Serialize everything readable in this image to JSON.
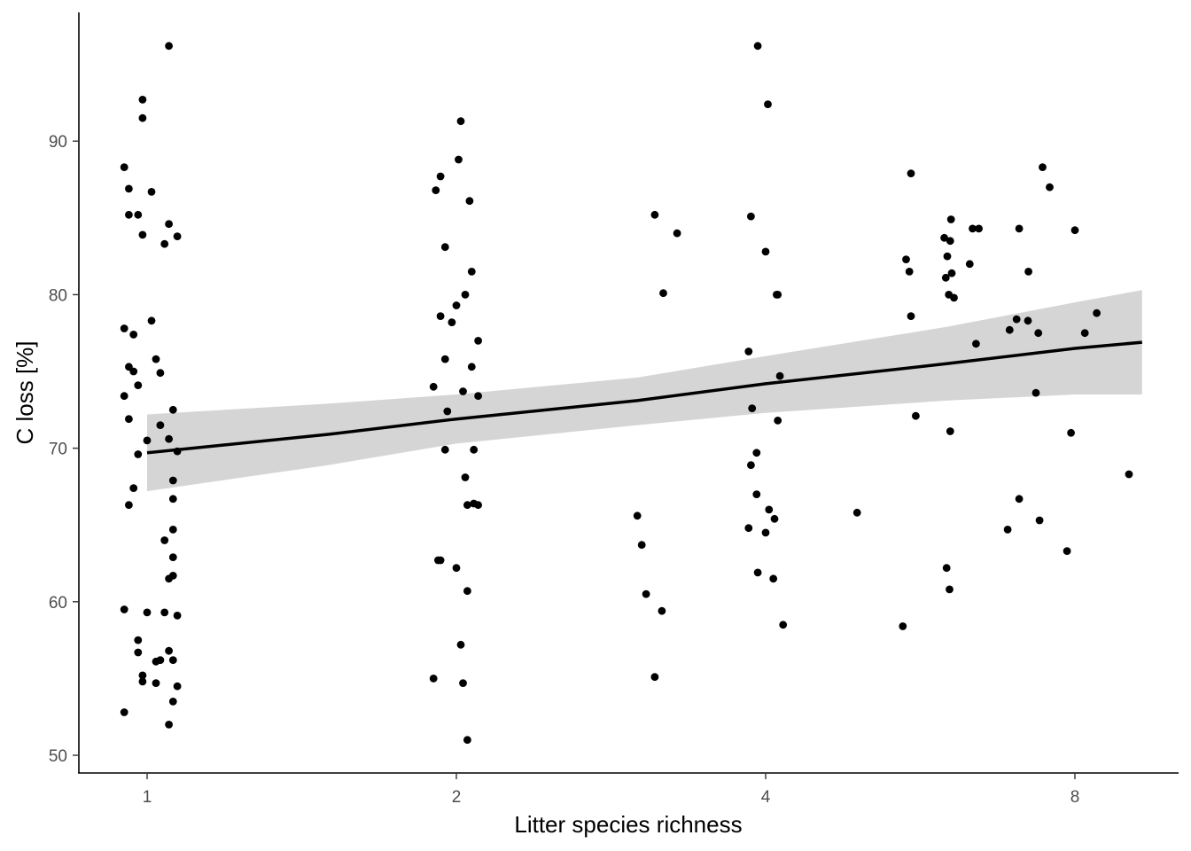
{
  "chart_data": {
    "type": "scatter",
    "title": "",
    "xlabel": "Litter species richness",
    "ylabel": "C loss [%]",
    "x_scale": "log2",
    "xticks": [
      1,
      2,
      4,
      8
    ],
    "xtick_labels": [
      "1",
      "2",
      "4",
      "8"
    ],
    "yticks": [
      50,
      60,
      70,
      80,
      90
    ],
    "ytick_labels": [
      "50",
      "60",
      "70",
      "80",
      "90"
    ],
    "xlim": [
      0.859,
      9.73
    ],
    "ylim": [
      49,
      96.6
    ],
    "grid": false,
    "legend": "none",
    "colors": {
      "points": "#000000",
      "fit_line": "#000000",
      "ribbon": "#d3d3d3",
      "axis": "#000000",
      "tick_text": "#4d4d4d"
    },
    "points": [
      {
        "x": 1.05,
        "y": 96.2
      },
      {
        "x": 0.99,
        "y": 92.7
      },
      {
        "x": 0.99,
        "y": 91.5
      },
      {
        "x": 0.95,
        "y": 88.3
      },
      {
        "x": 0.96,
        "y": 86.9
      },
      {
        "x": 1.01,
        "y": 86.7
      },
      {
        "x": 0.96,
        "y": 85.2
      },
      {
        "x": 0.98,
        "y": 85.2
      },
      {
        "x": 1.05,
        "y": 84.6
      },
      {
        "x": 0.99,
        "y": 83.9
      },
      {
        "x": 1.07,
        "y": 83.8
      },
      {
        "x": 1.04,
        "y": 83.3
      },
      {
        "x": 1.01,
        "y": 78.3
      },
      {
        "x": 0.95,
        "y": 77.8
      },
      {
        "x": 0.97,
        "y": 77.4
      },
      {
        "x": 1.02,
        "y": 75.8
      },
      {
        "x": 0.96,
        "y": 75.3
      },
      {
        "x": 0.97,
        "y": 75.0
      },
      {
        "x": 1.03,
        "y": 74.9
      },
      {
        "x": 0.98,
        "y": 74.1
      },
      {
        "x": 0.95,
        "y": 73.4
      },
      {
        "x": 1.06,
        "y": 72.5
      },
      {
        "x": 0.96,
        "y": 71.9
      },
      {
        "x": 1.03,
        "y": 71.5
      },
      {
        "x": 1.05,
        "y": 70.6
      },
      {
        "x": 1.0,
        "y": 70.5
      },
      {
        "x": 0.98,
        "y": 69.6
      },
      {
        "x": 1.07,
        "y": 69.8
      },
      {
        "x": 1.06,
        "y": 67.9
      },
      {
        "x": 0.97,
        "y": 67.4
      },
      {
        "x": 1.06,
        "y": 66.7
      },
      {
        "x": 0.96,
        "y": 66.3
      },
      {
        "x": 1.06,
        "y": 64.7
      },
      {
        "x": 1.04,
        "y": 64.0
      },
      {
        "x": 1.06,
        "y": 62.9
      },
      {
        "x": 1.06,
        "y": 61.7
      },
      {
        "x": 1.05,
        "y": 61.5
      },
      {
        "x": 0.95,
        "y": 59.5
      },
      {
        "x": 1.0,
        "y": 59.3
      },
      {
        "x": 1.04,
        "y": 59.3
      },
      {
        "x": 1.07,
        "y": 59.1
      },
      {
        "x": 0.98,
        "y": 57.5
      },
      {
        "x": 1.05,
        "y": 56.8
      },
      {
        "x": 0.98,
        "y": 56.7
      },
      {
        "x": 1.06,
        "y": 56.2
      },
      {
        "x": 1.02,
        "y": 56.1
      },
      {
        "x": 1.03,
        "y": 56.2
      },
      {
        "x": 0.99,
        "y": 55.2
      },
      {
        "x": 0.99,
        "y": 54.8
      },
      {
        "x": 1.02,
        "y": 54.7
      },
      {
        "x": 1.07,
        "y": 54.5
      },
      {
        "x": 1.06,
        "y": 53.5
      },
      {
        "x": 0.95,
        "y": 52.8
      },
      {
        "x": 1.05,
        "y": 52.0
      },
      {
        "x": 2.02,
        "y": 91.3
      },
      {
        "x": 2.01,
        "y": 88.8
      },
      {
        "x": 1.93,
        "y": 87.7
      },
      {
        "x": 1.91,
        "y": 86.8
      },
      {
        "x": 2.06,
        "y": 86.1
      },
      {
        "x": 1.95,
        "y": 83.1
      },
      {
        "x": 2.07,
        "y": 81.5
      },
      {
        "x": 2.04,
        "y": 80.0
      },
      {
        "x": 2.0,
        "y": 79.3
      },
      {
        "x": 1.93,
        "y": 78.6
      },
      {
        "x": 1.98,
        "y": 78.2
      },
      {
        "x": 2.1,
        "y": 77.0
      },
      {
        "x": 1.95,
        "y": 75.8
      },
      {
        "x": 2.07,
        "y": 75.3
      },
      {
        "x": 1.9,
        "y": 74.0
      },
      {
        "x": 2.03,
        "y": 73.7
      },
      {
        "x": 2.1,
        "y": 73.4
      },
      {
        "x": 1.96,
        "y": 72.4
      },
      {
        "x": 1.95,
        "y": 69.9
      },
      {
        "x": 2.08,
        "y": 69.9
      },
      {
        "x": 2.04,
        "y": 68.1
      },
      {
        "x": 2.05,
        "y": 66.3
      },
      {
        "x": 2.08,
        "y": 66.4
      },
      {
        "x": 2.1,
        "y": 66.3
      },
      {
        "x": 1.92,
        "y": 62.7
      },
      {
        "x": 1.93,
        "y": 62.7
      },
      {
        "x": 2.0,
        "y": 62.2
      },
      {
        "x": 2.05,
        "y": 60.7
      },
      {
        "x": 2.02,
        "y": 57.2
      },
      {
        "x": 1.9,
        "y": 55.0
      },
      {
        "x": 2.03,
        "y": 54.7
      },
      {
        "x": 2.05,
        "y": 51.0
      },
      {
        "x": 3.12,
        "y": 85.2
      },
      {
        "x": 3.28,
        "y": 84.0
      },
      {
        "x": 3.18,
        "y": 80.1
      },
      {
        "x": 3.0,
        "y": 65.6
      },
      {
        "x": 3.03,
        "y": 63.7
      },
      {
        "x": 3.06,
        "y": 60.5
      },
      {
        "x": 3.17,
        "y": 59.4
      },
      {
        "x": 3.12,
        "y": 55.1
      },
      {
        "x": 3.93,
        "y": 96.2
      },
      {
        "x": 4.02,
        "y": 92.4
      },
      {
        "x": 3.87,
        "y": 85.1
      },
      {
        "x": 4.0,
        "y": 82.8
      },
      {
        "x": 4.1,
        "y": 80.0
      },
      {
        "x": 4.11,
        "y": 80.0
      },
      {
        "x": 3.85,
        "y": 76.3
      },
      {
        "x": 4.13,
        "y": 74.7
      },
      {
        "x": 3.88,
        "y": 72.6
      },
      {
        "x": 4.11,
        "y": 71.8
      },
      {
        "x": 3.92,
        "y": 69.7
      },
      {
        "x": 3.87,
        "y": 68.9
      },
      {
        "x": 3.92,
        "y": 67.0
      },
      {
        "x": 4.03,
        "y": 66.0
      },
      {
        "x": 4.08,
        "y": 65.4
      },
      {
        "x": 3.85,
        "y": 64.8
      },
      {
        "x": 4.0,
        "y": 64.5
      },
      {
        "x": 3.93,
        "y": 61.9
      },
      {
        "x": 4.07,
        "y": 61.5
      },
      {
        "x": 4.16,
        "y": 58.5
      },
      {
        "x": 4.91,
        "y": 65.8
      },
      {
        "x": 5.54,
        "y": 87.9
      },
      {
        "x": 5.48,
        "y": 82.3
      },
      {
        "x": 5.52,
        "y": 81.5
      },
      {
        "x": 5.54,
        "y": 78.6
      },
      {
        "x": 5.6,
        "y": 72.1
      },
      {
        "x": 5.44,
        "y": 58.4
      },
      {
        "x": 6.06,
        "y": 84.9
      },
      {
        "x": 5.97,
        "y": 83.7
      },
      {
        "x": 6.05,
        "y": 83.5
      },
      {
        "x": 6.01,
        "y": 82.5
      },
      {
        "x": 6.07,
        "y": 81.4
      },
      {
        "x": 5.99,
        "y": 81.1
      },
      {
        "x": 6.03,
        "y": 80.0
      },
      {
        "x": 6.1,
        "y": 79.8
      },
      {
        "x": 6.05,
        "y": 71.1
      },
      {
        "x": 6.0,
        "y": 62.2
      },
      {
        "x": 6.04,
        "y": 60.8
      },
      {
        "x": 6.36,
        "y": 84.3
      },
      {
        "x": 6.45,
        "y": 84.3
      },
      {
        "x": 6.32,
        "y": 82.0
      },
      {
        "x": 6.41,
        "y": 76.8
      },
      {
        "x": 7.44,
        "y": 88.3
      },
      {
        "x": 7.56,
        "y": 87.0
      },
      {
        "x": 7.06,
        "y": 84.3
      },
      {
        "x": 7.21,
        "y": 81.5
      },
      {
        "x": 7.2,
        "y": 78.3
      },
      {
        "x": 7.02,
        "y": 78.4
      },
      {
        "x": 6.91,
        "y": 77.7
      },
      {
        "x": 7.37,
        "y": 77.5
      },
      {
        "x": 7.33,
        "y": 73.6
      },
      {
        "x": 7.06,
        "y": 66.7
      },
      {
        "x": 6.88,
        "y": 64.7
      },
      {
        "x": 7.39,
        "y": 65.3
      },
      {
        "x": 8.0,
        "y": 84.2
      },
      {
        "x": 8.4,
        "y": 78.8
      },
      {
        "x": 8.18,
        "y": 77.5
      },
      {
        "x": 7.93,
        "y": 71.0
      },
      {
        "x": 7.86,
        "y": 63.3
      },
      {
        "x": 9.03,
        "y": 68.3
      }
    ],
    "fit": {
      "x": [
        1,
        1.5,
        2,
        3,
        4,
        6,
        8,
        9.3
      ],
      "y": [
        69.7,
        70.9,
        71.9,
        73.1,
        74.2,
        75.5,
        76.5,
        76.9
      ],
      "ci_lower": [
        67.2,
        68.9,
        70.3,
        71.5,
        72.3,
        73.1,
        73.5,
        73.5
      ],
      "ci_upper": [
        72.2,
        72.9,
        73.5,
        74.6,
        76.0,
        77.9,
        79.5,
        80.3
      ]
    }
  }
}
